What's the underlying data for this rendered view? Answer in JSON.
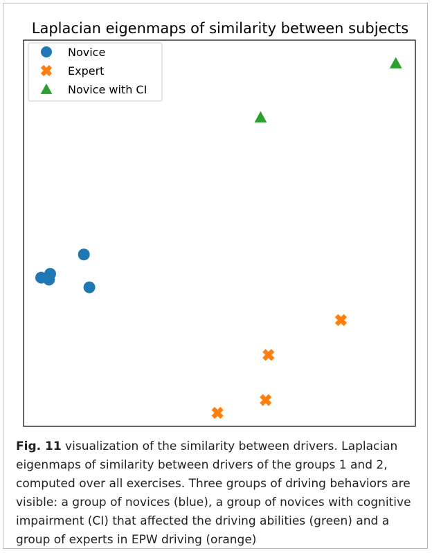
{
  "figure": {
    "label": "Fig. 11",
    "caption": " visualization of the similarity between drivers. Laplacian eigenmaps of similarity between drivers of the groups 1 and 2, computed over all exercises. Three groups of driving behaviors are visible: a group of novices (blue), a group of novices with cognitive impairment (CI) that affected the driving abilities (green) and a group of experts in EPW driving (orange)"
  },
  "chart_data": {
    "type": "scatter",
    "title": "Laplacian eigenmaps of similarity between subjects",
    "xlabel": "",
    "ylabel": "",
    "xlim": [
      0,
      100
    ],
    "ylim": [
      0,
      100
    ],
    "grid": false,
    "axis_ticks": false,
    "legend_position": "top-left",
    "series": [
      {
        "name": "Novice",
        "marker": "circle",
        "color": "#1f77b4",
        "points": [
          [
            4.5,
            38.5
          ],
          [
            6.5,
            38.0
          ],
          [
            6.8,
            39.5
          ],
          [
            15.4,
            44.5
          ],
          [
            16.8,
            36.0
          ]
        ]
      },
      {
        "name": "Expert",
        "marker": "x",
        "color": "#ff7f0e",
        "points": [
          [
            81.0,
            27.5
          ],
          [
            62.5,
            18.5
          ],
          [
            61.8,
            6.8
          ],
          [
            49.5,
            3.5
          ]
        ]
      },
      {
        "name": "Novice with CI",
        "marker": "triangle",
        "color": "#2ca02c",
        "points": [
          [
            95.0,
            94.0
          ],
          [
            60.5,
            80.0
          ]
        ]
      }
    ]
  }
}
